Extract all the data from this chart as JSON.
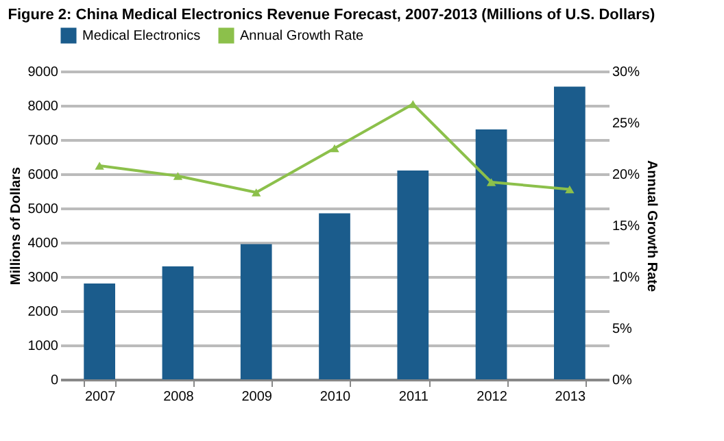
{
  "chart_data": {
    "type": "bar",
    "title": "Figure 2: China Medical Electronics Revenue Forecast, 2007-2013 (Millions of U.S. Dollars)",
    "categories": [
      "2007",
      "2008",
      "2009",
      "2010",
      "2011",
      "2012",
      "2013"
    ],
    "series": [
      {
        "name": "Medical Electronics",
        "color": "#1b5c8c",
        "values": [
          2800,
          3300,
          3950,
          4850,
          6100,
          7300,
          8550
        ]
      },
      {
        "name": "Annual Growth Rate",
        "type": "line",
        "axis": "y2",
        "color": "#8cc04b",
        "values": [
          20.8,
          19.8,
          18.2,
          22.5,
          26.8,
          19.2,
          18.5
        ]
      }
    ],
    "ylabel": "Millions of Dollars",
    "y2label": "Annual Growth Rate",
    "ylim": [
      0,
      9000
    ],
    "yticks": [
      0,
      1000,
      2000,
      3000,
      4000,
      5000,
      6000,
      7000,
      8000,
      9000
    ],
    "y2lim": [
      0,
      30
    ],
    "y2ticks": [
      {
        "value": 0,
        "label": "0%"
      },
      {
        "value": 5,
        "label": "5%"
      },
      {
        "value": 10,
        "label": "10%"
      },
      {
        "value": 15,
        "label": "15%"
      },
      {
        "value": 20,
        "label": "20%"
      },
      {
        "value": 25,
        "label": "25%"
      },
      {
        "value": 30,
        "label": "30%"
      }
    ],
    "grid": "y",
    "legend": "top",
    "marker": "triangle",
    "line_style": "solid"
  }
}
